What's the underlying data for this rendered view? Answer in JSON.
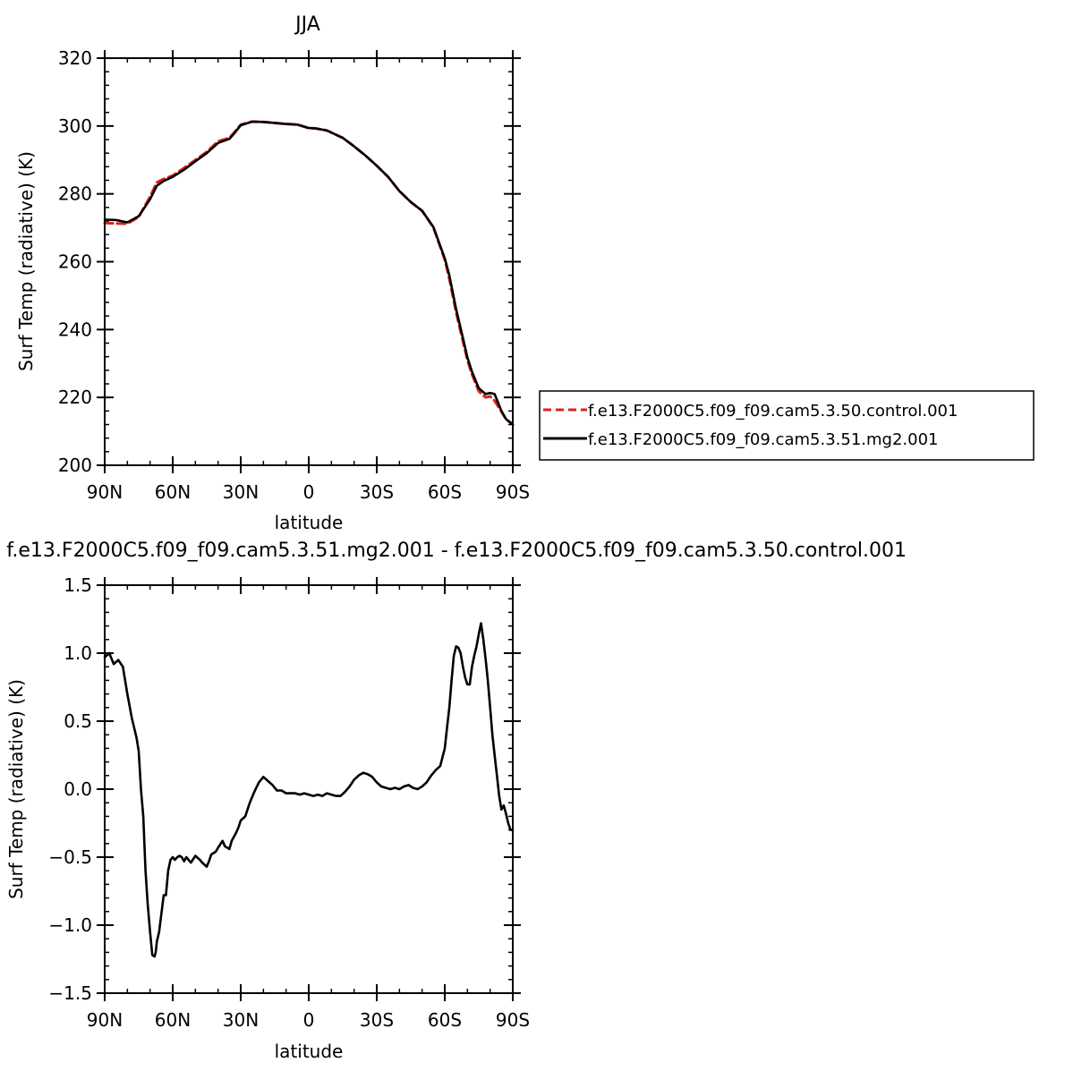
{
  "chart_data": [
    {
      "type": "line",
      "title": "JJA",
      "xlabel": "latitude",
      "ylabel": "Surf Temp (radiative) (K)",
      "xlim": [
        90,
        -90
      ],
      "ylim": [
        200,
        320
      ],
      "x_ticks": [
        90,
        60,
        30,
        0,
        -30,
        -60,
        -90
      ],
      "x_tick_labels": [
        "90N",
        "60N",
        "30N",
        "0",
        "30S",
        "60S",
        "90S"
      ],
      "y_ticks": [
        200,
        220,
        240,
        260,
        280,
        300,
        320
      ],
      "y_tick_labels": [
        "200",
        "220",
        "240",
        "260",
        "280",
        "300",
        "320"
      ],
      "grid": false,
      "legend_position": "right",
      "series": [
        {
          "name": "f.e13.F2000C5.f09_f09.cam5.3.50.control.001",
          "color": "#e0201b",
          "dash": "dashed",
          "x": [
            90,
            85,
            80,
            75,
            70,
            67,
            64,
            60,
            55,
            50,
            45,
            40,
            35,
            33,
            30,
            25,
            20,
            15,
            10,
            5,
            0,
            -3,
            -8,
            -15,
            -20,
            -25,
            -30,
            -35,
            -40,
            -45,
            -50,
            -55,
            -60,
            -62,
            -65,
            -68,
            -70,
            -72,
            -75,
            -78,
            -80,
            -82,
            -85,
            -87,
            -90
          ],
          "y": [
            271.4,
            271.3,
            271.2,
            273.2,
            279.2,
            283.4,
            284.4,
            285.4,
            287.6,
            290.0,
            292.4,
            295.5,
            296.5,
            298.0,
            300.4,
            301.3,
            301.2,
            300.9,
            300.6,
            300.4,
            299.4,
            299.3,
            298.7,
            296.5,
            294.0,
            291.3,
            288.3,
            285.0,
            280.8,
            277.6,
            275.0,
            270.1,
            260.6,
            255.0,
            245.0,
            236.5,
            231.0,
            226.8,
            221.8,
            220.0,
            220.3,
            219.0,
            215.8,
            213.6,
            212.0
          ]
        },
        {
          "name": "f.e13.F2000C5.f09_f09.cam5.3.51.mg2.001",
          "color": "#000000",
          "dash": "solid",
          "x": [
            90,
            85,
            80,
            75,
            70,
            67,
            64,
            60,
            55,
            50,
            45,
            40,
            35,
            33,
            30,
            25,
            20,
            15,
            10,
            5,
            0,
            -3,
            -8,
            -15,
            -20,
            -25,
            -30,
            -35,
            -40,
            -45,
            -50,
            -55,
            -60,
            -62,
            -65,
            -68,
            -70,
            -72,
            -75,
            -78,
            -80,
            -82,
            -85,
            -87,
            -90
          ],
          "y": [
            272.4,
            272.3,
            271.6,
            273.4,
            278.4,
            282.4,
            283.8,
            285.0,
            287.1,
            289.6,
            292.0,
            295.0,
            296.2,
            297.7,
            300.2,
            301.3,
            301.2,
            300.9,
            300.6,
            300.4,
            299.4,
            299.3,
            298.7,
            296.5,
            294.0,
            291.3,
            288.3,
            285.0,
            280.8,
            277.6,
            275.0,
            270.2,
            261.0,
            256.0,
            246.0,
            237.5,
            231.8,
            227.6,
            222.7,
            221.0,
            221.3,
            221.0,
            216.0,
            213.6,
            212.0
          ]
        }
      ]
    },
    {
      "type": "line",
      "title": "f.e13.F2000C5.f09_f09.cam5.3.51.mg2.001 - f.e13.F2000C5.f09_f09.cam5.3.50.control.001",
      "xlabel": "latitude",
      "ylabel": "Surf Temp (radiative) (K)",
      "xlim": [
        90,
        -90
      ],
      "ylim": [
        -1.5,
        1.5
      ],
      "x_ticks": [
        90,
        60,
        30,
        0,
        -30,
        -60,
        -90
      ],
      "x_tick_labels": [
        "90N",
        "60N",
        "30N",
        "0",
        "30S",
        "60S",
        "90S"
      ],
      "y_ticks": [
        -1.5,
        -1.0,
        -0.5,
        0.0,
        0.5,
        1.0,
        1.5
      ],
      "y_tick_labels": [
        "-1.5",
        "-1.0",
        "-0.5",
        "0.0",
        "0.5",
        "1.0",
        "1.5"
      ],
      "grid": false,
      "series": [
        {
          "color": "#000000",
          "dash": "solid",
          "x": [
            90,
            88,
            86,
            84,
            82,
            80,
            78,
            76,
            75,
            74,
            73,
            72,
            71,
            70,
            69,
            68,
            67.5,
            67,
            66,
            64,
            63,
            62,
            61,
            60,
            59,
            58,
            57,
            56,
            55,
            54,
            52,
            50,
            48,
            47,
            45,
            44,
            43,
            41,
            40,
            38,
            37,
            35,
            34,
            32,
            31,
            30,
            28,
            26,
            24,
            22,
            20,
            18,
            16,
            14,
            12,
            10,
            8,
            6,
            4,
            2,
            0,
            -2,
            -4,
            -6,
            -8,
            -10,
            -12,
            -14,
            -16,
            -18,
            -20,
            -22,
            -24,
            -26,
            -28,
            -30,
            -32,
            -34,
            -36,
            -38,
            -40,
            -42,
            -44,
            -46,
            -48,
            -50,
            -52,
            -54,
            -56,
            -58,
            -60,
            -61,
            -62,
            -63,
            -64,
            -65,
            -66,
            -67,
            -68,
            -69,
            -70,
            -71,
            -72,
            -73,
            -74,
            -75,
            -76,
            -77,
            -78,
            -79,
            -80,
            -81,
            -82,
            -83,
            -84,
            -85,
            -86,
            -87,
            -88,
            -89,
            -90
          ],
          "y": [
            0.97,
            1.0,
            0.92,
            0.95,
            0.9,
            0.7,
            0.52,
            0.38,
            0.28,
            0.0,
            -0.2,
            -0.6,
            -0.85,
            -1.05,
            -1.22,
            -1.23,
            -1.2,
            -1.12,
            -1.05,
            -0.78,
            -0.78,
            -0.6,
            -0.52,
            -0.5,
            -0.52,
            -0.5,
            -0.49,
            -0.5,
            -0.53,
            -0.5,
            -0.54,
            -0.49,
            -0.52,
            -0.54,
            -0.57,
            -0.53,
            -0.48,
            -0.46,
            -0.43,
            -0.38,
            -0.42,
            -0.44,
            -0.38,
            -0.32,
            -0.28,
            -0.23,
            -0.2,
            -0.1,
            -0.02,
            0.05,
            0.09,
            0.06,
            0.03,
            -0.01,
            -0.01,
            -0.03,
            -0.03,
            -0.03,
            -0.04,
            -0.03,
            -0.04,
            -0.05,
            -0.04,
            -0.05,
            -0.03,
            -0.04,
            -0.05,
            -0.05,
            -0.02,
            0.02,
            0.07,
            0.1,
            0.12,
            0.11,
            0.09,
            0.05,
            0.02,
            0.01,
            0.0,
            0.01,
            0.0,
            0.02,
            0.03,
            0.01,
            0.0,
            0.02,
            0.05,
            0.1,
            0.14,
            0.17,
            0.3,
            0.45,
            0.6,
            0.8,
            0.98,
            1.05,
            1.04,
            1.0,
            0.9,
            0.82,
            0.77,
            0.77,
            0.9,
            0.98,
            1.05,
            1.14,
            1.22,
            1.1,
            0.96,
            0.8,
            0.6,
            0.4,
            0.25,
            0.1,
            -0.05,
            -0.15,
            -0.12,
            -0.18,
            -0.25,
            -0.3,
            -0.3
          ]
        }
      ]
    }
  ]
}
